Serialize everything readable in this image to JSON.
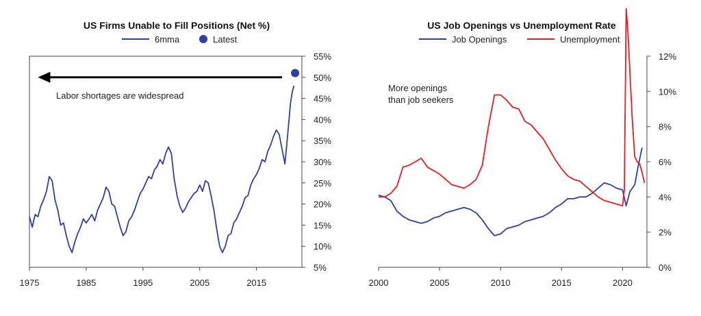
{
  "chart_data": [
    {
      "type": "line",
      "title": "US Firms Unable to Fill Positions (Net %)",
      "xlabel": "",
      "ylabel": "",
      "xlim": [
        1975,
        2023
      ],
      "ylim": [
        5,
        55
      ],
      "x_ticks": [
        1975,
        1985,
        1995,
        2005,
        2015
      ],
      "y_ticks": [
        5,
        10,
        15,
        20,
        25,
        30,
        35,
        40,
        45,
        50,
        55
      ],
      "y_tick_labels": [
        "5%",
        "10%",
        "15%",
        "20%",
        "25%",
        "30%",
        "35%",
        "40%",
        "45%",
        "50%",
        "55%"
      ],
      "y_axis_side": "right",
      "grid": false,
      "legend_position": "top-center",
      "annotation": "Labor shortages are widespread",
      "arrow": {
        "from_x": 2019.5,
        "to_x": 1976.5,
        "y": 50
      },
      "series": [
        {
          "name": "6mma",
          "color": "#2E3F9E",
          "x": [
            1975.0,
            1975.5,
            1976.0,
            1976.5,
            1977.0,
            1977.5,
            1978.0,
            1978.5,
            1979.0,
            1979.5,
            1980.0,
            1980.5,
            1981.0,
            1981.5,
            1982.0,
            1982.5,
            1983.0,
            1983.5,
            1984.0,
            1984.5,
            1985.0,
            1985.5,
            1986.0,
            1986.5,
            1987.0,
            1987.5,
            1988.0,
            1988.5,
            1989.0,
            1989.5,
            1990.0,
            1990.5,
            1991.0,
            1991.5,
            1992.0,
            1992.5,
            1993.0,
            1993.5,
            1994.0,
            1994.5,
            1995.0,
            1995.5,
            1996.0,
            1996.5,
            1997.0,
            1997.5,
            1998.0,
            1998.5,
            1999.0,
            1999.5,
            2000.0,
            2000.5,
            2001.0,
            2001.5,
            2002.0,
            2002.5,
            2003.0,
            2003.5,
            2004.0,
            2004.5,
            2005.0,
            2005.5,
            2006.0,
            2006.5,
            2007.0,
            2007.5,
            2008.0,
            2008.5,
            2009.0,
            2009.5,
            2010.0,
            2010.5,
            2011.0,
            2011.5,
            2012.0,
            2012.5,
            2013.0,
            2013.5,
            2014.0,
            2014.5,
            2015.0,
            2015.5,
            2016.0,
            2016.5,
            2017.0,
            2017.5,
            2018.0,
            2018.5,
            2019.0,
            2019.5,
            2020.0,
            2020.3,
            2020.6,
            2021.0,
            2021.3,
            2021.6
          ],
          "values": [
            17.0,
            14.5,
            17.5,
            17.0,
            19.5,
            21.0,
            23.0,
            26.5,
            25.5,
            21.0,
            18.5,
            15.0,
            15.5,
            12.5,
            10.0,
            8.5,
            11.0,
            13.0,
            14.5,
            16.5,
            15.5,
            16.5,
            17.5,
            16.0,
            18.5,
            20.0,
            21.5,
            24.0,
            23.0,
            20.0,
            19.5,
            17.0,
            14.5,
            12.5,
            13.5,
            16.0,
            17.0,
            18.5,
            20.5,
            22.5,
            23.5,
            25.0,
            26.5,
            26.0,
            28.0,
            29.0,
            30.5,
            29.5,
            32.0,
            33.5,
            32.0,
            26.0,
            22.0,
            19.5,
            18.0,
            19.0,
            20.5,
            21.5,
            22.5,
            23.0,
            24.5,
            23.0,
            25.5,
            25.0,
            22.0,
            18.5,
            14.0,
            10.0,
            8.5,
            10.0,
            12.5,
            13.0,
            15.5,
            16.5,
            18.0,
            19.5,
            21.5,
            22.0,
            24.5,
            26.0,
            27.0,
            28.5,
            30.5,
            30.0,
            32.5,
            34.0,
            36.0,
            37.5,
            36.5,
            33.0,
            29.5,
            33.5,
            38.0,
            44.0,
            46.5,
            48.0
          ]
        },
        {
          "name": "Latest",
          "color": "#2E3F9E",
          "marker": "dot",
          "x": [
            2021.8
          ],
          "values": [
            51.0
          ]
        }
      ]
    },
    {
      "type": "line",
      "title": "US Job Openings vs Unemployment Rate",
      "xlabel": "",
      "ylabel": "",
      "xlim": [
        2000,
        2022
      ],
      "ylim": [
        0,
        12
      ],
      "x_ticks": [
        2000,
        2005,
        2010,
        2015,
        2020
      ],
      "y_ticks": [
        0,
        2,
        4,
        6,
        8,
        10,
        12
      ],
      "y_tick_labels": [
        "0%",
        "2%",
        "4%",
        "6%",
        "8%",
        "10%",
        "12%"
      ],
      "y_axis_side": "right",
      "grid": false,
      "legend_position": "top-center",
      "annotation": [
        "More openings",
        "than job seekers"
      ],
      "series": [
        {
          "name": "Job Openings",
          "color": "#2E3F9E",
          "x": [
            2000.0,
            2000.5,
            2001.0,
            2001.5,
            2002.0,
            2002.5,
            2003.0,
            2003.5,
            2004.0,
            2004.5,
            2005.0,
            2005.5,
            2006.0,
            2006.5,
            2007.0,
            2007.5,
            2008.0,
            2008.5,
            2009.0,
            2009.5,
            2010.0,
            2010.5,
            2011.0,
            2011.5,
            2012.0,
            2012.5,
            2013.0,
            2013.5,
            2014.0,
            2014.5,
            2015.0,
            2015.5,
            2016.0,
            2016.5,
            2017.0,
            2017.5,
            2018.0,
            2018.5,
            2019.0,
            2019.5,
            2020.0,
            2020.3,
            2020.6,
            2021.0,
            2021.3,
            2021.6
          ],
          "values": [
            4.1,
            4.0,
            3.8,
            3.2,
            2.9,
            2.7,
            2.6,
            2.5,
            2.6,
            2.8,
            2.9,
            3.1,
            3.2,
            3.3,
            3.4,
            3.3,
            3.1,
            2.7,
            2.2,
            1.8,
            1.9,
            2.2,
            2.3,
            2.4,
            2.6,
            2.7,
            2.8,
            2.9,
            3.1,
            3.4,
            3.6,
            3.9,
            3.9,
            4.0,
            4.0,
            4.2,
            4.5,
            4.8,
            4.7,
            4.5,
            4.4,
            3.5,
            4.3,
            4.7,
            5.8,
            6.8
          ]
        },
        {
          "name": "Unemployment",
          "color": "#E31E24",
          "x": [
            2000.0,
            2000.5,
            2001.0,
            2001.5,
            2002.0,
            2002.5,
            2003.0,
            2003.5,
            2004.0,
            2004.5,
            2005.0,
            2005.5,
            2006.0,
            2006.5,
            2007.0,
            2007.5,
            2008.0,
            2008.5,
            2009.0,
            2009.5,
            2010.0,
            2010.5,
            2011.0,
            2011.5,
            2012.0,
            2012.5,
            2013.0,
            2013.5,
            2014.0,
            2014.5,
            2015.0,
            2015.5,
            2016.0,
            2016.5,
            2017.0,
            2017.5,
            2018.0,
            2018.5,
            2019.0,
            2019.5,
            2020.0,
            2020.15,
            2020.3,
            2020.45,
            2020.6,
            2020.8,
            2021.0,
            2021.2,
            2021.4,
            2021.6,
            2021.8
          ],
          "values": [
            4.0,
            4.0,
            4.2,
            4.6,
            5.7,
            5.8,
            6.0,
            6.2,
            5.7,
            5.5,
            5.3,
            5.0,
            4.7,
            4.6,
            4.5,
            4.7,
            5.0,
            5.8,
            8.0,
            9.8,
            9.8,
            9.5,
            9.1,
            9.0,
            8.3,
            8.1,
            7.7,
            7.3,
            6.7,
            6.1,
            5.6,
            5.2,
            5.0,
            4.9,
            4.6,
            4.3,
            4.0,
            3.8,
            3.7,
            3.6,
            3.5,
            4.4,
            14.7,
            13.3,
            11.1,
            8.4,
            6.3,
            6.0,
            5.9,
            5.4,
            4.8
          ]
        }
      ]
    }
  ]
}
